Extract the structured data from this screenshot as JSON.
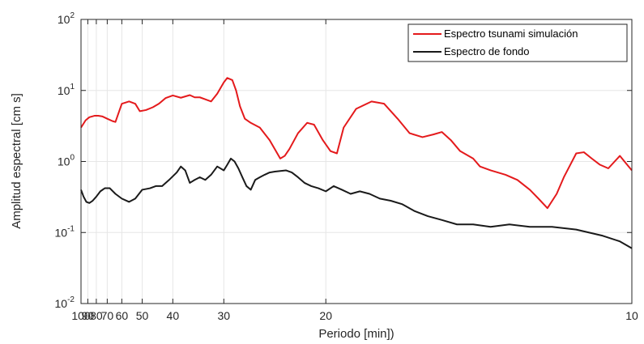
{
  "chart_data": {
    "type": "line",
    "xlabel": "Periodo [min])",
    "ylabel": "Amplitud espectral [cm s]",
    "x_scale": "reciprocal",
    "y_scale": "log",
    "xlim": [
      100,
      10
    ],
    "ylim": [
      0.01,
      100
    ],
    "grid": true,
    "legend_position": "top-right",
    "x_ticks": [
      100,
      90,
      80,
      70,
      60,
      50,
      40,
      30,
      20,
      10
    ],
    "y_ticks": [
      {
        "value": 0.01,
        "base": "10",
        "exp": "-2"
      },
      {
        "value": 0.1,
        "base": "10",
        "exp": "-1"
      },
      {
        "value": 1,
        "base": "10",
        "exp": "0"
      },
      {
        "value": 10,
        "base": "10",
        "exp": "1"
      },
      {
        "value": 100,
        "base": "10",
        "exp": "2"
      }
    ],
    "series": [
      {
        "name": "Espectro tsunami simulación",
        "color": "#e41a1c",
        "x": [
          100,
          93,
          88,
          82,
          78,
          74,
          70,
          66,
          64,
          60,
          56,
          53,
          51,
          48.5,
          46,
          44,
          42,
          40,
          38,
          36,
          35,
          34,
          33,
          32,
          31,
          30,
          29.5,
          28.8,
          28.3,
          27.8,
          27.2,
          26.5,
          25.5,
          24.5,
          23.5,
          23.1,
          22.7,
          22,
          21.3,
          20.8,
          20.2,
          19.7,
          19.3,
          18.9,
          18.2,
          17.4,
          16.8,
          16.2,
          15.7,
          15.2,
          14.8,
          14.5,
          14.2,
          13.9,
          13.5,
          13.3,
          13.0,
          12.6,
          12.3,
          12.0,
          11.8,
          11.6,
          11.4,
          11.25,
          11.1,
          11.0,
          10.85,
          10.7,
          10.55,
          10.4,
          10.2,
          10.1,
          10.0
        ],
        "y": [
          3.0,
          3.8,
          4.2,
          4.4,
          4.4,
          4.3,
          4.0,
          3.7,
          3.6,
          6.5,
          7.0,
          6.5,
          5.1,
          5.3,
          5.8,
          6.5,
          7.8,
          8.5,
          7.9,
          8.6,
          8.0,
          8.0,
          7.5,
          7.0,
          9.0,
          13.0,
          15.0,
          14.0,
          10.0,
          6.0,
          4.0,
          3.5,
          3.0,
          2.0,
          1.1,
          1.2,
          1.5,
          2.5,
          3.5,
          3.3,
          2.0,
          1.4,
          1.3,
          3.0,
          5.5,
          7.0,
          6.5,
          4.0,
          2.5,
          2.2,
          2.4,
          2.6,
          2.0,
          1.4,
          1.1,
          0.85,
          0.75,
          0.65,
          0.55,
          0.4,
          0.3,
          0.22,
          0.35,
          0.6,
          0.95,
          1.3,
          1.35,
          1.1,
          0.9,
          0.8,
          1.2,
          0.95,
          0.75
        ]
      },
      {
        "name": "Espectro de fondo",
        "color": "#1a1a1a",
        "x": [
          100,
          96,
          92,
          88,
          84,
          80,
          76,
          72,
          68,
          64,
          60,
          56,
          53,
          50,
          47,
          45,
          43,
          41,
          39,
          38,
          37,
          36,
          35,
          34,
          33,
          32,
          31,
          30,
          29.5,
          29,
          28.5,
          28,
          27.5,
          27,
          26.5,
          26,
          25.5,
          25,
          24.5,
          24,
          23,
          22.5,
          22,
          21.5,
          21,
          20.5,
          20,
          19.5,
          19,
          18.5,
          18,
          17.5,
          17,
          16.5,
          16,
          15.5,
          15,
          14.5,
          14,
          13.5,
          13,
          12.5,
          12,
          11.5,
          11,
          10.5,
          10.2,
          10
        ],
        "y": [
          0.4,
          0.32,
          0.27,
          0.26,
          0.28,
          0.32,
          0.38,
          0.42,
          0.42,
          0.35,
          0.3,
          0.27,
          0.3,
          0.4,
          0.42,
          0.45,
          0.45,
          0.55,
          0.7,
          0.85,
          0.75,
          0.5,
          0.55,
          0.6,
          0.55,
          0.65,
          0.85,
          0.75,
          0.9,
          1.1,
          1.0,
          0.8,
          0.6,
          0.45,
          0.4,
          0.55,
          0.6,
          0.65,
          0.7,
          0.72,
          0.75,
          0.7,
          0.6,
          0.5,
          0.45,
          0.42,
          0.38,
          0.45,
          0.4,
          0.35,
          0.38,
          0.35,
          0.3,
          0.28,
          0.25,
          0.2,
          0.17,
          0.15,
          0.13,
          0.13,
          0.12,
          0.13,
          0.12,
          0.12,
          0.11,
          0.09,
          0.075,
          0.06
        ]
      }
    ]
  }
}
